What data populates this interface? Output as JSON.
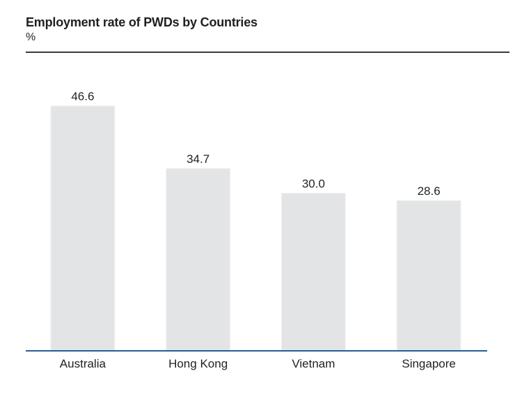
{
  "chart_data": {
    "type": "bar",
    "title": "Employment rate of PWDs by Countries",
    "subtitle": "%",
    "categories": [
      "Australia",
      "Hong Kong",
      "Vietnam",
      "Singapore"
    ],
    "values": [
      46.6,
      34.7,
      30.0,
      28.6
    ],
    "data_labels": [
      "46.6",
      "34.7",
      "30.0",
      "28.6"
    ],
    "xlabel": "",
    "ylabel": "",
    "ylim": [
      0,
      46.6
    ],
    "grid": false,
    "legend": "none"
  },
  "colors": {
    "bar_fill": "#e3e4e6",
    "axis_line": "#2e5c87",
    "top_rule": "#3a3a3a"
  }
}
